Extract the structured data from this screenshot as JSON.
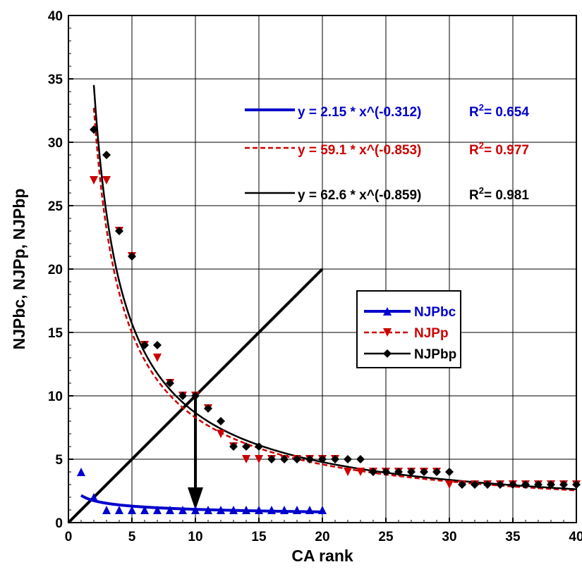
{
  "chart_data": {
    "type": "scatter",
    "xlabel": "CA  rank",
    "ylabel": "NJPbc,  NJPp,  NJPbp",
    "xlim": [
      0,
      40
    ],
    "ylim": [
      0,
      40
    ],
    "x_ticks": [
      0,
      5,
      10,
      15,
      20,
      25,
      30,
      35,
      40
    ],
    "y_ticks": [
      0,
      5,
      10,
      15,
      20,
      25,
      30,
      35,
      40
    ],
    "grid": true,
    "legend_position": "center-right",
    "series": [
      {
        "name": "NJPbc",
        "color": "#0000CC",
        "marker": "triangle-up",
        "x": [
          1,
          2,
          3,
          4,
          5,
          6,
          7,
          8,
          9,
          10,
          11,
          12,
          13,
          14,
          15,
          16,
          17,
          18,
          19,
          20
        ],
        "y": [
          4,
          2,
          1,
          1,
          1,
          1,
          1,
          1,
          1,
          1,
          1,
          1,
          1,
          1,
          1,
          1,
          1,
          1,
          1,
          1
        ]
      },
      {
        "name": "NJPp",
        "color": "#CC0000",
        "marker": "triangle-down",
        "x": [
          2,
          3,
          4,
          5,
          6,
          7,
          8,
          9,
          10,
          11,
          12,
          13,
          14,
          15,
          16,
          17,
          18,
          19,
          20,
          21,
          22,
          23,
          24,
          25,
          26,
          27,
          28,
          29,
          30,
          31,
          32,
          33,
          34,
          35,
          36,
          37,
          38,
          39,
          40
        ],
        "y": [
          27,
          27,
          23,
          21,
          14,
          13,
          11,
          10,
          10,
          9,
          7,
          6,
          5,
          5,
          5,
          5,
          5,
          5,
          5,
          5,
          4,
          4,
          4,
          4,
          4,
          4,
          4,
          4,
          3,
          3,
          3,
          3,
          3,
          3,
          3,
          3,
          3,
          3,
          3
        ]
      },
      {
        "name": "NJPbp",
        "color": "#000000",
        "marker": "diamond",
        "x": [
          2,
          3,
          4,
          5,
          6,
          7,
          8,
          9,
          10,
          11,
          12,
          13,
          14,
          15,
          16,
          17,
          18,
          19,
          20,
          21,
          22,
          23,
          24,
          25,
          26,
          27,
          28,
          29,
          30,
          31,
          32,
          33,
          34,
          35,
          36,
          37,
          38,
          39,
          40
        ],
        "y": [
          31,
          29,
          23,
          21,
          14,
          14,
          11,
          10,
          10,
          9,
          8,
          6,
          6,
          6,
          5,
          5,
          5,
          5,
          5,
          5,
          5,
          5,
          4,
          4,
          4,
          4,
          4,
          4,
          4,
          3,
          3,
          3,
          3,
          3,
          3,
          3,
          3,
          3,
          3
        ]
      }
    ],
    "fits": [
      {
        "series": "NJPbc",
        "a": 2.15,
        "b": -0.312,
        "x_range": [
          1,
          20
        ],
        "color": "#0000CC",
        "dash": "solid",
        "label": "y = 2.15 * x^(-0.312)",
        "r2_prefix": "R",
        "r2_sup": "2",
        "r2_value": "= 0.654"
      },
      {
        "series": "NJPp",
        "a": 59.1,
        "b": -0.853,
        "x_range": [
          2,
          40
        ],
        "color": "#CC0000",
        "dash": "dashed",
        "label": "y = 59.1 * x^(-0.853)",
        "r2_prefix": "R",
        "r2_sup": "2",
        "r2_value": "= 0.977"
      },
      {
        "series": "NJPbp",
        "a": 62.6,
        "b": -0.859,
        "x_range": [
          2,
          40
        ],
        "color": "#000000",
        "dash": "solid",
        "label": "y = 62.6 * x^(-0.859)",
        "r2_prefix": "R",
        "r2_sup": "2",
        "r2_value": "= 0.981"
      }
    ],
    "annotations": [
      {
        "type": "line",
        "from": [
          0,
          0
        ],
        "to": [
          20,
          20
        ],
        "color": "#000000"
      },
      {
        "type": "arrow",
        "from": [
          10,
          10
        ],
        "to": [
          10,
          1
        ],
        "color": "#000000"
      }
    ]
  }
}
